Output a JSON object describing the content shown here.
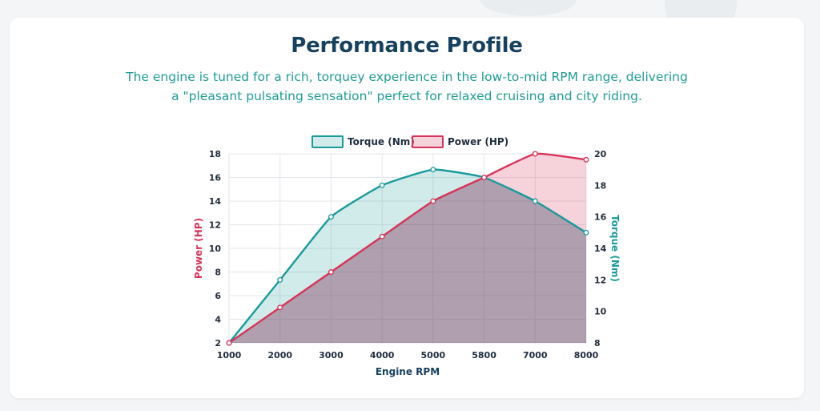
{
  "page": {
    "title": "Performance Profile",
    "subtitle": "The engine is tuned for a rich, torquey experience in the low-to-mid RPM range, delivering a \"pleasant pulsating sensation\" perfect for relaxed cruising and city riding."
  },
  "chart_data": {
    "type": "area",
    "title": "",
    "xlabel": "Engine RPM",
    "categories": [
      "1000",
      "2000",
      "3000",
      "4000",
      "5000",
      "5800",
      "7000",
      "8000"
    ],
    "series": [
      {
        "name": "Torque (Nm)",
        "axis": "right",
        "values": [
          8,
          12,
          16,
          18,
          19,
          18.5,
          17,
          15
        ],
        "line_color": "#1a9a9a",
        "fill_color": "rgba(26,154,154,0.20)"
      },
      {
        "name": "Power (HP)",
        "axis": "left",
        "values": [
          2,
          5,
          8,
          11,
          14,
          16,
          18,
          17.5
        ],
        "line_color": "#d63459",
        "fill_color": "rgba(214,52,89,0.22)"
      }
    ],
    "y_left": {
      "label": "Power (HP)",
      "range": [
        2,
        18
      ],
      "ticks": [
        "2",
        "4",
        "6",
        "8",
        "10",
        "12",
        "14",
        "16",
        "18"
      ],
      "color": "#d63459"
    },
    "y_right": {
      "label": "Torque (Nm)",
      "range": [
        8,
        20
      ],
      "ticks": [
        "8",
        "10",
        "12",
        "14",
        "16",
        "18",
        "20"
      ],
      "color": "#1a9a9a"
    },
    "legend": "top-center",
    "grid": true
  }
}
